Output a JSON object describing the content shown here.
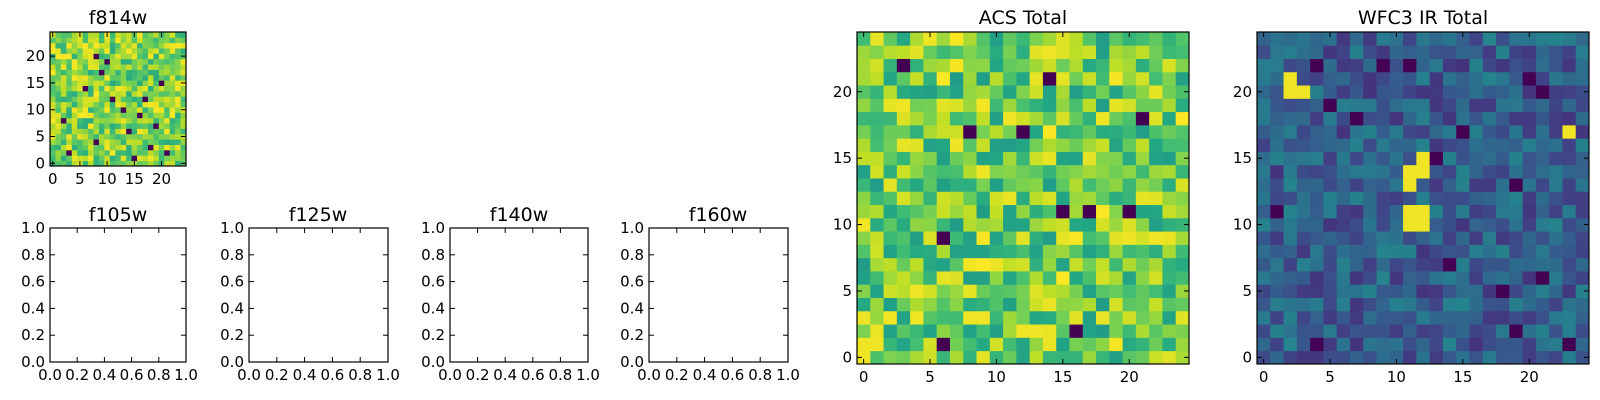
{
  "chart_data": [
    {
      "type": "heatmap",
      "title": "f814w",
      "xlim": [
        -0.5,
        24.5
      ],
      "ylim": [
        -0.5,
        24.5
      ],
      "grid_size": 25,
      "x_ticks": [
        0,
        5,
        10,
        15,
        20
      ],
      "y_ticks": [
        0,
        5,
        10,
        15,
        20
      ],
      "x_tick_labels": [
        "0",
        "5",
        "10",
        "15",
        "20"
      ],
      "y_tick_labels": [
        "0",
        "5",
        "10",
        "15",
        "20"
      ],
      "colormap": "viridis",
      "level_range": [
        0.62,
        1.0
      ],
      "dark_pixels": [
        [
          8,
          20
        ],
        [
          10,
          19
        ],
        [
          9,
          17
        ],
        [
          20,
          15
        ],
        [
          11,
          12
        ],
        [
          13,
          10
        ],
        [
          16,
          9
        ],
        [
          19,
          7
        ],
        [
          14,
          6
        ],
        [
          8,
          4
        ],
        [
          18,
          3
        ],
        [
          3,
          2
        ],
        [
          15,
          1
        ],
        [
          21,
          2
        ],
        [
          6,
          14
        ],
        [
          2,
          8
        ],
        [
          17,
          12
        ]
      ],
      "seed": 11
    },
    {
      "type": "heatmap",
      "title": "ACS Total",
      "xlim": [
        -0.5,
        24.5
      ],
      "ylim": [
        -0.5,
        24.5
      ],
      "grid_size": 25,
      "x_ticks": [
        0,
        5,
        10,
        15,
        20
      ],
      "y_ticks": [
        0,
        5,
        10,
        15,
        20
      ],
      "x_tick_labels": [
        "0",
        "5",
        "10",
        "15",
        "20"
      ],
      "y_tick_labels": [
        "0",
        "5",
        "10",
        "15",
        "20"
      ],
      "colormap": "viridis",
      "level_range": [
        0.55,
        1.0
      ],
      "dark_pixels": [
        [
          3,
          22
        ],
        [
          14,
          21
        ],
        [
          8,
          17
        ],
        [
          12,
          17
        ],
        [
          15,
          11
        ],
        [
          17,
          11
        ],
        [
          20,
          11
        ],
        [
          6,
          9
        ],
        [
          16,
          2
        ],
        [
          6,
          1
        ],
        [
          21,
          18
        ]
      ],
      "bright_pixels": [
        [
          0,
          1
        ],
        [
          0,
          0
        ],
        [
          1,
          1
        ],
        [
          14,
          23
        ],
        [
          8,
          3
        ],
        [
          9,
          3
        ],
        [
          12,
          2
        ],
        [
          13,
          2
        ],
        [
          22,
          9
        ],
        [
          7,
          16
        ],
        [
          18,
          18
        ],
        [
          0,
          10
        ]
      ],
      "seed": 23
    },
    {
      "type": "heatmap",
      "title": "WFC3 IR Total",
      "xlim": [
        -0.5,
        24.5
      ],
      "ylim": [
        -0.5,
        24.5
      ],
      "grid_size": 25,
      "x_ticks": [
        0,
        5,
        10,
        15,
        20
      ],
      "y_ticks": [
        0,
        5,
        10,
        15,
        20
      ],
      "x_tick_labels": [
        "0",
        "5",
        "10",
        "15",
        "20"
      ],
      "y_tick_labels": [
        "0",
        "5",
        "10",
        "15",
        "20"
      ],
      "colormap": "viridis",
      "level_range": [
        0.15,
        0.45
      ],
      "bright_pixels": [
        [
          2,
          20
        ],
        [
          2,
          21
        ],
        [
          11,
          14
        ],
        [
          12,
          14
        ],
        [
          12,
          15
        ],
        [
          11,
          13
        ],
        [
          11,
          10
        ],
        [
          12,
          10
        ],
        [
          11,
          11
        ],
        [
          12,
          11
        ],
        [
          3,
          20
        ],
        [
          23,
          17
        ]
      ],
      "dark_pixels": [
        [
          5,
          19
        ],
        [
          9,
          22
        ],
        [
          4,
          22
        ],
        [
          11,
          22
        ],
        [
          7,
          18
        ],
        [
          15,
          17
        ],
        [
          1,
          11
        ],
        [
          13,
          15
        ],
        [
          19,
          13
        ],
        [
          14,
          7
        ],
        [
          21,
          6
        ],
        [
          18,
          5
        ],
        [
          19,
          2
        ],
        [
          23,
          1
        ],
        [
          4,
          1
        ],
        [
          21,
          20
        ],
        [
          20,
          21
        ]
      ],
      "seed": 37
    },
    {
      "type": "scatter",
      "title": "f105w",
      "xlim": [
        0.0,
        1.0
      ],
      "ylim": [
        0.0,
        1.0
      ],
      "x_ticks": [
        0.0,
        0.2,
        0.4,
        0.6,
        0.8,
        1.0
      ],
      "y_ticks": [
        0.0,
        0.2,
        0.4,
        0.6,
        0.8,
        1.0
      ],
      "x_tick_labels": [
        "0.0",
        "0.2",
        "0.4",
        "0.6",
        "0.8",
        "1.0"
      ],
      "y_tick_labels": [
        "0.0",
        "0.2",
        "0.4",
        "0.6",
        "0.8",
        "1.0"
      ],
      "series": []
    },
    {
      "type": "scatter",
      "title": "f125w",
      "xlim": [
        0.0,
        1.0
      ],
      "ylim": [
        0.0,
        1.0
      ],
      "x_ticks": [
        0.0,
        0.2,
        0.4,
        0.6,
        0.8,
        1.0
      ],
      "y_ticks": [
        0.0,
        0.2,
        0.4,
        0.6,
        0.8,
        1.0
      ],
      "x_tick_labels": [
        "0.0",
        "0.2",
        "0.4",
        "0.6",
        "0.8",
        "1.0"
      ],
      "y_tick_labels": [
        "0.0",
        "0.2",
        "0.4",
        "0.6",
        "0.8",
        "1.0"
      ],
      "series": []
    },
    {
      "type": "scatter",
      "title": "f140w",
      "xlim": [
        0.0,
        1.0
      ],
      "ylim": [
        0.0,
        1.0
      ],
      "x_ticks": [
        0.0,
        0.2,
        0.4,
        0.6,
        0.8,
        1.0
      ],
      "y_ticks": [
        0.0,
        0.2,
        0.4,
        0.6,
        0.8,
        1.0
      ],
      "x_tick_labels": [
        "0.0",
        "0.2",
        "0.4",
        "0.6",
        "0.8",
        "1.0"
      ],
      "y_tick_labels": [
        "0.0",
        "0.2",
        "0.4",
        "0.6",
        "0.8",
        "1.0"
      ],
      "series": []
    },
    {
      "type": "scatter",
      "title": "f160w",
      "xlim": [
        0.0,
        1.0
      ],
      "ylim": [
        0.0,
        1.0
      ],
      "x_ticks": [
        0.0,
        0.2,
        0.4,
        0.6,
        0.8,
        1.0
      ],
      "y_ticks": [
        0.0,
        0.2,
        0.4,
        0.6,
        0.8,
        1.0
      ],
      "x_tick_labels": [
        "0.0",
        "0.2",
        "0.4",
        "0.6",
        "0.8",
        "1.0"
      ],
      "y_tick_labels": [
        "0.0",
        "0.2",
        "0.4",
        "0.6",
        "0.8",
        "1.0"
      ],
      "series": []
    }
  ]
}
